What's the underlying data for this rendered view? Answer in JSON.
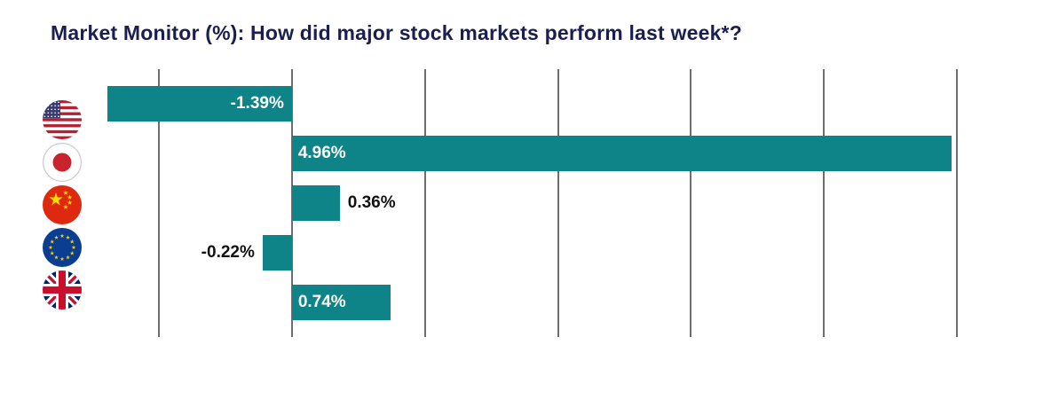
{
  "title": "Market Monitor (%): How did major stock markets perform last week*?",
  "colors": {
    "bar": "#0E8388",
    "title": "#1A1F4F",
    "gridline": "#6E6E6E",
    "label_inside": "#FFFFFF",
    "label_outside": "#121212",
    "background": "#FFFFFF"
  },
  "chart_data": {
    "type": "bar",
    "orientation": "horizontal",
    "title": "Market Monitor (%): How did major stock markets perform last week*?",
    "categories": [
      "United States",
      "Japan",
      "China",
      "European Union",
      "United Kingdom"
    ],
    "values": [
      -1.39,
      4.96,
      0.36,
      -0.22,
      0.74
    ],
    "labels": [
      "-1.39%",
      "4.96%",
      "0.36%",
      "-0.22%",
      "0.74%"
    ],
    "label_placements": [
      "inside",
      "inside",
      "outside",
      "outside",
      "inside"
    ],
    "icons": [
      "us-flag-icon",
      "japan-flag-icon",
      "china-flag-icon",
      "eu-flag-icon",
      "uk-flag-icon"
    ],
    "flag_codes": [
      "us",
      "jp",
      "cn",
      "eu",
      "uk"
    ],
    "xlim": [
      -1,
      5
    ],
    "gridline_step": 1,
    "xlabel": "",
    "ylabel": "",
    "grid": true,
    "axis_tick_labels_visible": false,
    "legend": "none"
  }
}
